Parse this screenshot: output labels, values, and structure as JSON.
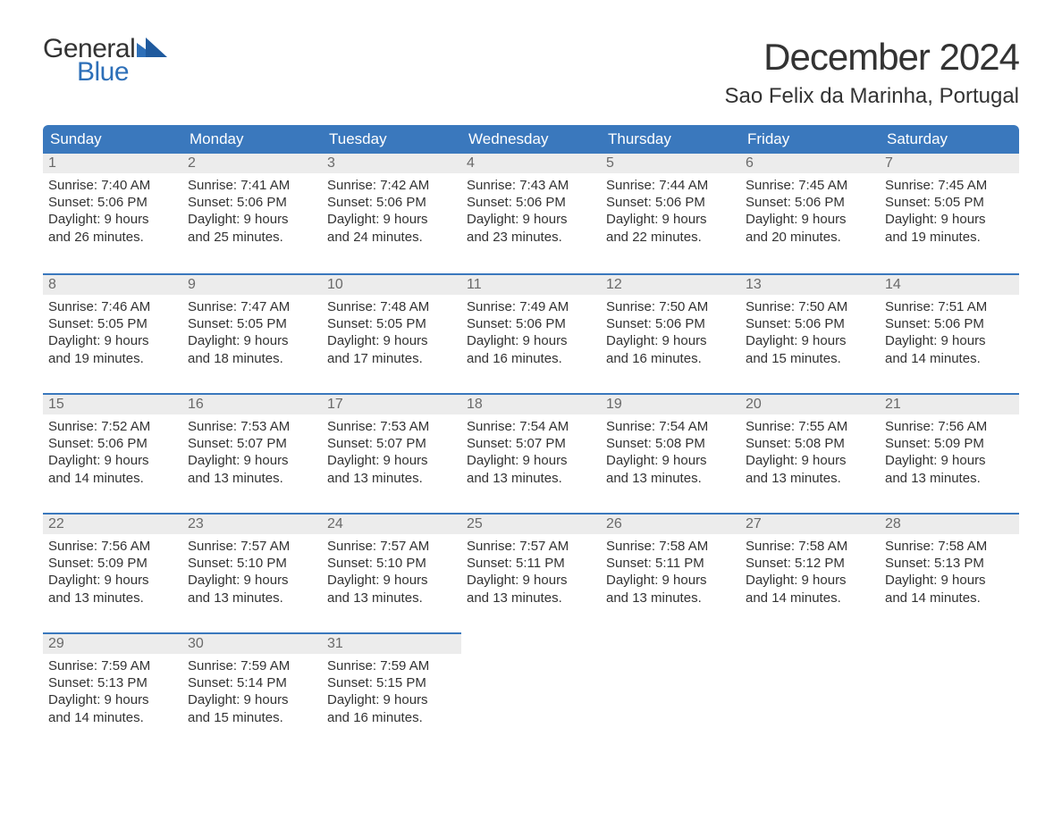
{
  "logo": {
    "word1": "General",
    "word2": "Blue",
    "accent_color": "#2d6fb8"
  },
  "title": "December 2024",
  "location": "Sao Felix da Marinha, Portugal",
  "colors": {
    "header_bg": "#3a78bd",
    "header_text": "#ffffff",
    "day_num_bg": "#ececec",
    "day_num_text": "#6a6a6a",
    "sep": "#3a78bd",
    "body_text": "#333333",
    "page_bg": "#ffffff"
  },
  "weekdays": [
    "Sunday",
    "Monday",
    "Tuesday",
    "Wednesday",
    "Thursday",
    "Friday",
    "Saturday"
  ],
  "weeks": [
    [
      {
        "n": "1",
        "sunrise": "Sunrise: 7:40 AM",
        "sunset": "Sunset: 5:06 PM",
        "d1": "Daylight: 9 hours",
        "d2": "and 26 minutes."
      },
      {
        "n": "2",
        "sunrise": "Sunrise: 7:41 AM",
        "sunset": "Sunset: 5:06 PM",
        "d1": "Daylight: 9 hours",
        "d2": "and 25 minutes."
      },
      {
        "n": "3",
        "sunrise": "Sunrise: 7:42 AM",
        "sunset": "Sunset: 5:06 PM",
        "d1": "Daylight: 9 hours",
        "d2": "and 24 minutes."
      },
      {
        "n": "4",
        "sunrise": "Sunrise: 7:43 AM",
        "sunset": "Sunset: 5:06 PM",
        "d1": "Daylight: 9 hours",
        "d2": "and 23 minutes."
      },
      {
        "n": "5",
        "sunrise": "Sunrise: 7:44 AM",
        "sunset": "Sunset: 5:06 PM",
        "d1": "Daylight: 9 hours",
        "d2": "and 22 minutes."
      },
      {
        "n": "6",
        "sunrise": "Sunrise: 7:45 AM",
        "sunset": "Sunset: 5:06 PM",
        "d1": "Daylight: 9 hours",
        "d2": "and 20 minutes."
      },
      {
        "n": "7",
        "sunrise": "Sunrise: 7:45 AM",
        "sunset": "Sunset: 5:05 PM",
        "d1": "Daylight: 9 hours",
        "d2": "and 19 minutes."
      }
    ],
    [
      {
        "n": "8",
        "sunrise": "Sunrise: 7:46 AM",
        "sunset": "Sunset: 5:05 PM",
        "d1": "Daylight: 9 hours",
        "d2": "and 19 minutes."
      },
      {
        "n": "9",
        "sunrise": "Sunrise: 7:47 AM",
        "sunset": "Sunset: 5:05 PM",
        "d1": "Daylight: 9 hours",
        "d2": "and 18 minutes."
      },
      {
        "n": "10",
        "sunrise": "Sunrise: 7:48 AM",
        "sunset": "Sunset: 5:05 PM",
        "d1": "Daylight: 9 hours",
        "d2": "and 17 minutes."
      },
      {
        "n": "11",
        "sunrise": "Sunrise: 7:49 AM",
        "sunset": "Sunset: 5:06 PM",
        "d1": "Daylight: 9 hours",
        "d2": "and 16 minutes."
      },
      {
        "n": "12",
        "sunrise": "Sunrise: 7:50 AM",
        "sunset": "Sunset: 5:06 PM",
        "d1": "Daylight: 9 hours",
        "d2": "and 16 minutes."
      },
      {
        "n": "13",
        "sunrise": "Sunrise: 7:50 AM",
        "sunset": "Sunset: 5:06 PM",
        "d1": "Daylight: 9 hours",
        "d2": "and 15 minutes."
      },
      {
        "n": "14",
        "sunrise": "Sunrise: 7:51 AM",
        "sunset": "Sunset: 5:06 PM",
        "d1": "Daylight: 9 hours",
        "d2": "and 14 minutes."
      }
    ],
    [
      {
        "n": "15",
        "sunrise": "Sunrise: 7:52 AM",
        "sunset": "Sunset: 5:06 PM",
        "d1": "Daylight: 9 hours",
        "d2": "and 14 minutes."
      },
      {
        "n": "16",
        "sunrise": "Sunrise: 7:53 AM",
        "sunset": "Sunset: 5:07 PM",
        "d1": "Daylight: 9 hours",
        "d2": "and 13 minutes."
      },
      {
        "n": "17",
        "sunrise": "Sunrise: 7:53 AM",
        "sunset": "Sunset: 5:07 PM",
        "d1": "Daylight: 9 hours",
        "d2": "and 13 minutes."
      },
      {
        "n": "18",
        "sunrise": "Sunrise: 7:54 AM",
        "sunset": "Sunset: 5:07 PM",
        "d1": "Daylight: 9 hours",
        "d2": "and 13 minutes."
      },
      {
        "n": "19",
        "sunrise": "Sunrise: 7:54 AM",
        "sunset": "Sunset: 5:08 PM",
        "d1": "Daylight: 9 hours",
        "d2": "and 13 minutes."
      },
      {
        "n": "20",
        "sunrise": "Sunrise: 7:55 AM",
        "sunset": "Sunset: 5:08 PM",
        "d1": "Daylight: 9 hours",
        "d2": "and 13 minutes."
      },
      {
        "n": "21",
        "sunrise": "Sunrise: 7:56 AM",
        "sunset": "Sunset: 5:09 PM",
        "d1": "Daylight: 9 hours",
        "d2": "and 13 minutes."
      }
    ],
    [
      {
        "n": "22",
        "sunrise": "Sunrise: 7:56 AM",
        "sunset": "Sunset: 5:09 PM",
        "d1": "Daylight: 9 hours",
        "d2": "and 13 minutes."
      },
      {
        "n": "23",
        "sunrise": "Sunrise: 7:57 AM",
        "sunset": "Sunset: 5:10 PM",
        "d1": "Daylight: 9 hours",
        "d2": "and 13 minutes."
      },
      {
        "n": "24",
        "sunrise": "Sunrise: 7:57 AM",
        "sunset": "Sunset: 5:10 PM",
        "d1": "Daylight: 9 hours",
        "d2": "and 13 minutes."
      },
      {
        "n": "25",
        "sunrise": "Sunrise: 7:57 AM",
        "sunset": "Sunset: 5:11 PM",
        "d1": "Daylight: 9 hours",
        "d2": "and 13 minutes."
      },
      {
        "n": "26",
        "sunrise": "Sunrise: 7:58 AM",
        "sunset": "Sunset: 5:11 PM",
        "d1": "Daylight: 9 hours",
        "d2": "and 13 minutes."
      },
      {
        "n": "27",
        "sunrise": "Sunrise: 7:58 AM",
        "sunset": "Sunset: 5:12 PM",
        "d1": "Daylight: 9 hours",
        "d2": "and 14 minutes."
      },
      {
        "n": "28",
        "sunrise": "Sunrise: 7:58 AM",
        "sunset": "Sunset: 5:13 PM",
        "d1": "Daylight: 9 hours",
        "d2": "and 14 minutes."
      }
    ],
    [
      {
        "n": "29",
        "sunrise": "Sunrise: 7:59 AM",
        "sunset": "Sunset: 5:13 PM",
        "d1": "Daylight: 9 hours",
        "d2": "and 14 minutes."
      },
      {
        "n": "30",
        "sunrise": "Sunrise: 7:59 AM",
        "sunset": "Sunset: 5:14 PM",
        "d1": "Daylight: 9 hours",
        "d2": "and 15 minutes."
      },
      {
        "n": "31",
        "sunrise": "Sunrise: 7:59 AM",
        "sunset": "Sunset: 5:15 PM",
        "d1": "Daylight: 9 hours",
        "d2": "and 16 minutes."
      },
      {
        "empty": true
      },
      {
        "empty": true
      },
      {
        "empty": true
      },
      {
        "empty": true
      }
    ]
  ]
}
